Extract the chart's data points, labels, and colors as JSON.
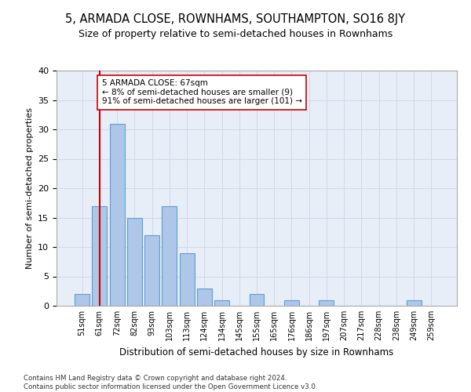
{
  "title": "5, ARMADA CLOSE, ROWNHAMS, SOUTHAMPTON, SO16 8JY",
  "subtitle": "Size of property relative to semi-detached houses in Rownhams",
  "xlabel": "Distribution of semi-detached houses by size in Rownhams",
  "ylabel": "Number of semi-detached properties",
  "categories": [
    "51sqm",
    "61sqm",
    "72sqm",
    "82sqm",
    "93sqm",
    "103sqm",
    "113sqm",
    "124sqm",
    "134sqm",
    "145sqm",
    "155sqm",
    "165sqm",
    "176sqm",
    "186sqm",
    "197sqm",
    "207sqm",
    "217sqm",
    "228sqm",
    "238sqm",
    "249sqm",
    "259sqm"
  ],
  "values": [
    2,
    17,
    31,
    15,
    12,
    17,
    9,
    3,
    1,
    0,
    2,
    0,
    1,
    0,
    1,
    0,
    0,
    0,
    0,
    1,
    0
  ],
  "bar_color": "#aec6e8",
  "bar_edgecolor": "#5a9fd4",
  "bar_linewidth": 0.8,
  "vline_x": 1.0,
  "vline_color": "#cc0000",
  "vline_linewidth": 1.5,
  "annotation_text": "5 ARMADA CLOSE: 67sqm\n← 8% of semi-detached houses are smaller (9)\n91% of semi-detached houses are larger (101) →",
  "annotation_box_edgecolor": "#cc0000",
  "annotation_box_facecolor": "#ffffff",
  "ylim": [
    0,
    40
  ],
  "yticks": [
    0,
    5,
    10,
    15,
    20,
    25,
    30,
    35,
    40
  ],
  "grid_color": "#d0d8e8",
  "background_color": "#e8eef8",
  "title_fontsize": 10.5,
  "subtitle_fontsize": 9,
  "footer_text": "Contains HM Land Registry data © Crown copyright and database right 2024.\nContains public sector information licensed under the Open Government Licence v3.0."
}
